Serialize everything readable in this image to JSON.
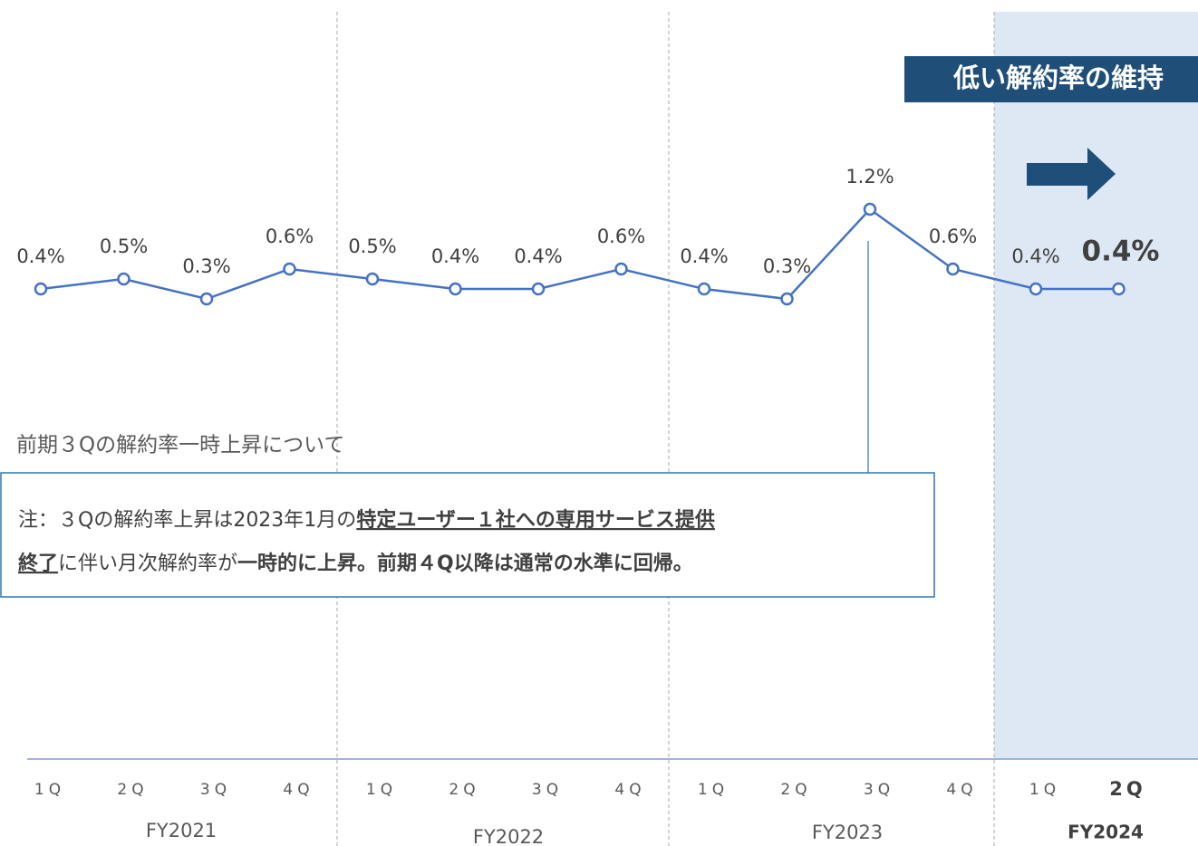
{
  "chart_data": {
    "type": "line",
    "title": "低い解約率の維持",
    "categories": [
      "1Q",
      "2Q",
      "3Q",
      "4Q",
      "1Q",
      "2Q",
      "3Q",
      "4Q",
      "1Q",
      "2Q",
      "3Q",
      "4Q",
      "1Q",
      "2Q"
    ],
    "groups": [
      "FY2021",
      "FY2022",
      "FY2023",
      "FY2024"
    ],
    "series": [
      {
        "name": "解約率",
        "color": "#4472c4",
        "values": [
          0.4,
          0.5,
          0.3,
          0.6,
          0.5,
          0.4,
          0.4,
          0.6,
          0.4,
          0.3,
          1.2,
          0.6,
          0.4,
          0.4
        ],
        "value_labels": [
          "0.4%",
          "0.5%",
          "0.3%",
          "0.6%",
          "0.5%",
          "0.4%",
          "0.4%",
          "0.6%",
          "0.4%",
          "0.3%",
          "1.2%",
          "0.6%",
          "0.4%",
          "0.4%"
        ]
      }
    ],
    "annotations": {
      "heading": "前期３Qの解約率一時上昇について",
      "note": [
        [
          {
            "text": "注：３Qの解約率上昇は2023年1月の",
            "bold": false,
            "underline": false
          },
          {
            "text": "特定ユーザー１社への専用サービス提供",
            "bold": true,
            "underline": true
          }
        ],
        [
          {
            "text": "終了",
            "bold": true,
            "underline": true
          },
          {
            "text": "に伴い月次解約率が",
            "bold": false,
            "underline": false
          },
          {
            "text": "一時的に上昇。前期４Q以降は通常の水準に回帰。",
            "bold": true,
            "underline": false
          }
        ]
      ]
    }
  }
}
